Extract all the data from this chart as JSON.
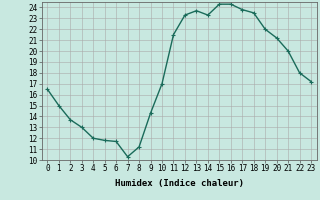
{
  "x": [
    0,
    1,
    2,
    3,
    4,
    5,
    6,
    7,
    8,
    9,
    10,
    11,
    12,
    13,
    14,
    15,
    16,
    17,
    18,
    19,
    20,
    21,
    22,
    23
  ],
  "y": [
    16.5,
    15.0,
    13.7,
    13.0,
    12.0,
    11.8,
    11.7,
    10.3,
    11.2,
    14.3,
    17.0,
    21.5,
    23.3,
    23.7,
    23.3,
    24.3,
    24.3,
    23.8,
    23.5,
    22.0,
    21.2,
    20.0,
    18.0,
    17.2
  ],
  "line_color": "#1a6b5a",
  "marker": "+",
  "marker_size": 3,
  "marker_color": "#1a6b5a",
  "bg_color": "#c8e8e0",
  "grid_color": "#b0d0c8",
  "grid_color_major": "#aaaaaa",
  "xlabel": "Humidex (Indice chaleur)",
  "xlim": [
    -0.5,
    23.5
  ],
  "ylim": [
    10,
    24.5
  ],
  "yticks": [
    10,
    11,
    12,
    13,
    14,
    15,
    16,
    17,
    18,
    19,
    20,
    21,
    22,
    23,
    24
  ],
  "xticks": [
    0,
    1,
    2,
    3,
    4,
    5,
    6,
    7,
    8,
    9,
    10,
    11,
    12,
    13,
    14,
    15,
    16,
    17,
    18,
    19,
    20,
    21,
    22,
    23
  ],
  "tick_fontsize": 5.5,
  "xlabel_fontsize": 6.5,
  "linewidth": 1.0
}
